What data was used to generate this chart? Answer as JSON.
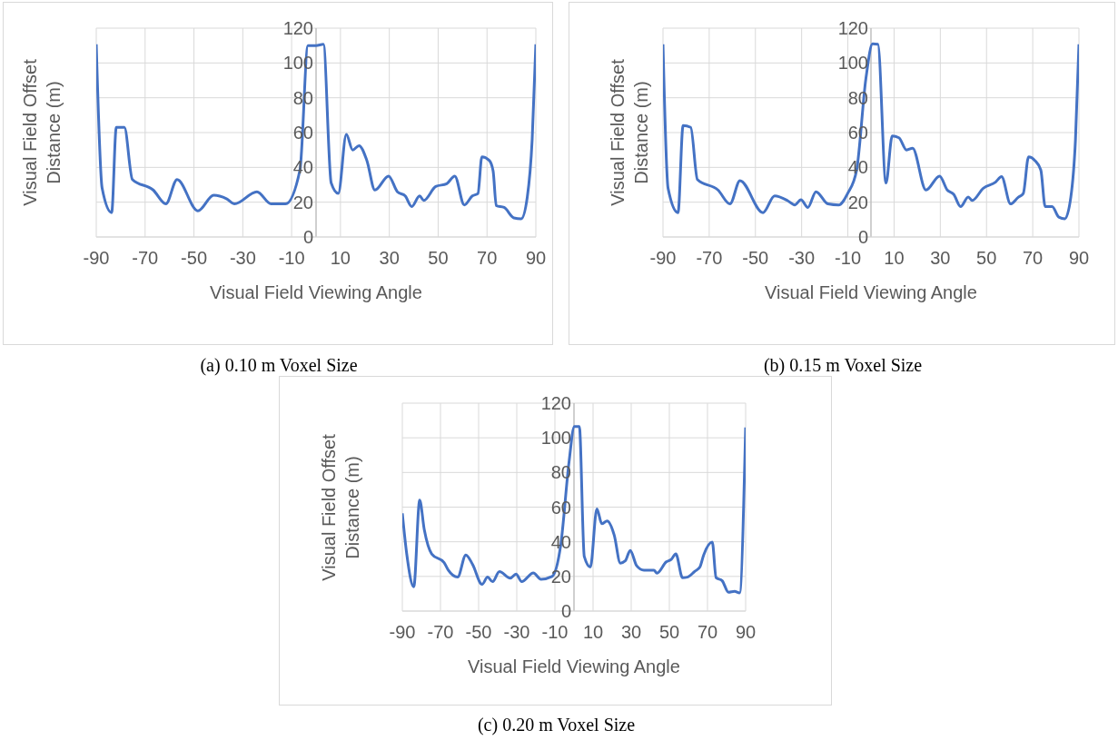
{
  "chart_data": [
    {
      "type": "line",
      "title": "(a) 0.10 m Voxel Size",
      "xlabel": "Visual Field Viewing Angle",
      "ylabel": "Visual Field Offset Distance (m)",
      "xlim": [
        -90,
        90
      ],
      "ylim": [
        0,
        120
      ],
      "xticks": [
        -90,
        -70,
        -50,
        -30,
        -10,
        10,
        30,
        50,
        70,
        90
      ],
      "yticks": [
        0,
        20,
        40,
        60,
        80,
        100,
        120
      ],
      "grid": true,
      "x": [
        -90,
        -87.6,
        -83.7,
        -81.8,
        -78.5,
        -75.2,
        -66.7,
        -61.5,
        -56.9,
        -48.4,
        -41.9,
        -36.7,
        -33.4,
        -24.2,
        -18.4,
        -12.5,
        -6.6,
        -3.3,
        0,
        3,
        6.2,
        9.1,
        12.4,
        15,
        17.6,
        20.8,
        24.1,
        29.7,
        33.3,
        36.5,
        39.2,
        42.4,
        44.1,
        49,
        53.5,
        56.8,
        60.7,
        64,
        66.3,
        67.9,
        70.9,
        72.5,
        73.8,
        77,
        81,
        84,
        86.5,
        88.5,
        90
      ],
      "series": [
        {
          "color": "#4472c4",
          "values": [
            110.7,
            28,
            14,
            63,
            63,
            33,
            27,
            19,
            33,
            15,
            24,
            22,
            19,
            26,
            19,
            19,
            38.5,
            110,
            110,
            110.7,
            31,
            25,
            59,
            50,
            52.5,
            44,
            27,
            35,
            26,
            23.6,
            17.5,
            23.6,
            21,
            29,
            30.6,
            35,
            18.4,
            23.6,
            25,
            46,
            44,
            38,
            18,
            17,
            11,
            10.5,
            23,
            56,
            110.7
          ]
        }
      ]
    },
    {
      "type": "line",
      "title": "(b) 0.15 m Voxel Size",
      "xlabel": "Visual Field Viewing Angle",
      "ylabel": "Visual Field Offset Distance (m)",
      "xlim": [
        -90,
        90
      ],
      "ylim": [
        0,
        120
      ],
      "xticks": [
        -90,
        -70,
        -50,
        -30,
        -10,
        10,
        30,
        50,
        70,
        90
      ],
      "yticks": [
        0,
        20,
        40,
        60,
        80,
        100,
        120
      ],
      "grid": true,
      "x": [
        -90,
        -87.8,
        -83.5,
        -81.3,
        -78,
        -75.1,
        -66.2,
        -61,
        -56.7,
        -46.7,
        -41.7,
        -36.2,
        -33,
        -30.3,
        -27.3,
        -23.8,
        -18.6,
        -14,
        -10.1,
        -6.2,
        -2.2,
        0.7,
        3,
        6.5,
        9.2,
        12.1,
        15.4,
        18,
        23.8,
        29.7,
        33,
        35.8,
        38.8,
        42.1,
        43.8,
        48.6,
        53.9,
        56.5,
        60.4,
        63.7,
        65.9,
        68.2,
        70.9,
        73.5,
        75.4,
        78.4,
        81.3,
        83.9,
        86.5,
        88.5,
        90
      ],
      "series": [
        {
          "color": "#4472c4",
          "values": [
            110.7,
            28,
            14,
            64,
            63,
            33,
            27,
            19,
            32.4,
            14,
            23.6,
            21,
            18.4,
            21.4,
            17,
            26,
            19,
            18.4,
            25,
            38.5,
            91,
            111,
            110.7,
            31,
            58,
            57,
            50,
            51,
            27,
            35,
            27,
            24.5,
            17.5,
            23,
            21,
            28,
            31.5,
            34.7,
            19,
            22.8,
            25,
            46,
            44,
            38.5,
            17.5,
            17.5,
            11.4,
            10.5,
            23,
            56,
            110.7
          ]
        }
      ]
    },
    {
      "type": "line",
      "title": "(c) 0.20 m Voxel Size",
      "xlabel": "Visual Field Viewing Angle",
      "ylabel": "Visual Field Offset Distance (m)",
      "xlim": [
        -90,
        90
      ],
      "ylim": [
        0,
        120
      ],
      "xticks": [
        -90,
        -70,
        -50,
        -30,
        -10,
        10,
        30,
        50,
        70,
        90
      ],
      "yticks": [
        0,
        20,
        40,
        60,
        80,
        100,
        120
      ],
      "grid": true,
      "x": [
        -90,
        -87.7,
        -84,
        -80.9,
        -78.5,
        -74.6,
        -68.1,
        -65.9,
        -61,
        -56.7,
        -53.2,
        -48.2,
        -45.3,
        -42.7,
        -39.1,
        -33.4,
        -30.4,
        -27.4,
        -21.3,
        -17.3,
        -11.5,
        -6.9,
        -2.6,
        0.2,
        2.8,
        5.4,
        8.6,
        12,
        14.6,
        17.4,
        21.1,
        24.3,
        26.9,
        29.5,
        32.8,
        36.7,
        41.9,
        43.5,
        48.4,
        51,
        53.4,
        56.9,
        59.5,
        63.4,
        66,
        68,
        72.5,
        74.5,
        77.7,
        81,
        84.2,
        86.8,
        90
      ],
      "series": [
        {
          "color": "#4472c4",
          "values": [
            56.4,
            33,
            14,
            64,
            47,
            33,
            28,
            23.6,
            19.6,
            32.4,
            27,
            15.4,
            19.6,
            17,
            22.8,
            19,
            21.4,
            17,
            22,
            18.4,
            20,
            38.5,
            86,
            106.5,
            106.5,
            31.5,
            25.4,
            59,
            50.4,
            52,
            43.8,
            27.7,
            29,
            35,
            26.3,
            23.6,
            23.6,
            21.9,
            28.4,
            29.8,
            33,
            19.3,
            19.6,
            23,
            25.4,
            32.4,
            39.8,
            19.3,
            17.5,
            10.9,
            11.4,
            10.5,
            106
          ]
        }
      ]
    }
  ]
}
